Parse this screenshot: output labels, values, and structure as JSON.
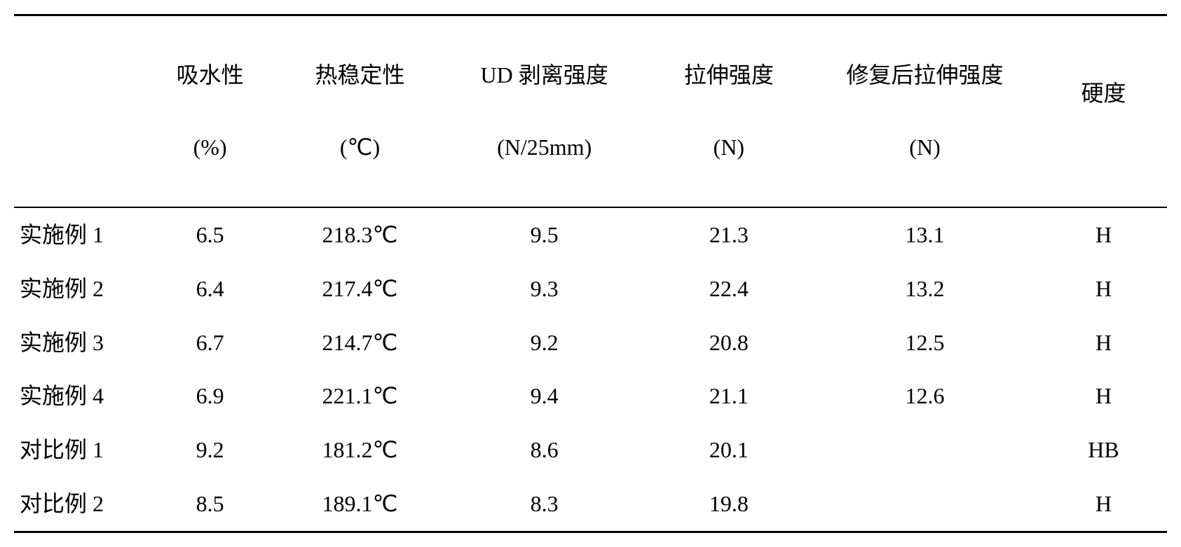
{
  "table": {
    "type": "table",
    "background_color": "#ffffff",
    "text_color": "#000000",
    "border_color": "#000000",
    "font_size": 32,
    "font_family": "SimSun",
    "border_top_width": 3,
    "border_header_width": 2,
    "border_bottom_width": 3,
    "columns": [
      {
        "label": "",
        "width_pct": 11,
        "align": "left"
      },
      {
        "label_line1": "吸水性",
        "label_line2": "(%)",
        "width_pct": 12,
        "align": "center"
      },
      {
        "label_line1": "热稳定性",
        "label_line2": "(℃)",
        "width_pct": 14,
        "align": "center"
      },
      {
        "label_line1": "UD 剥离强度",
        "label_line2": "(N/25mm)",
        "width_pct": 18,
        "align": "center"
      },
      {
        "label_line1": "拉伸强度",
        "label_line2": "(N)",
        "width_pct": 14,
        "align": "center"
      },
      {
        "label_line1": "修复后拉伸强度",
        "label_line2": "(N)",
        "width_pct": 20,
        "align": "center"
      },
      {
        "label_line1": "硬度",
        "label_line2": "",
        "width_pct": 11,
        "align": "center"
      }
    ],
    "rows": [
      {
        "label": "实施例 1",
        "c1": "6.5",
        "c2": "218.3℃",
        "c3": "9.5",
        "c4": "21.3",
        "c5": "13.1",
        "c6": "H"
      },
      {
        "label": "实施例 2",
        "c1": "6.4",
        "c2": "217.4℃",
        "c3": "9.3",
        "c4": "22.4",
        "c5": "13.2",
        "c6": "H"
      },
      {
        "label": "实施例 3",
        "c1": "6.7",
        "c2": "214.7℃",
        "c3": "9.2",
        "c4": "20.8",
        "c5": "12.5",
        "c6": "H"
      },
      {
        "label": "实施例 4",
        "c1": "6.9",
        "c2": "221.1℃",
        "c3": "9.4",
        "c4": "21.1",
        "c5": "12.6",
        "c6": "H"
      },
      {
        "label": "对比例 1",
        "c1": "9.2",
        "c2": "181.2℃",
        "c3": "8.6",
        "c4": "20.1",
        "c5": "",
        "c6": "HB"
      },
      {
        "label": "对比例 2",
        "c1": "8.5",
        "c2": "189.1℃",
        "c3": "8.3",
        "c4": "19.8",
        "c5": "",
        "c6": "H"
      }
    ]
  }
}
